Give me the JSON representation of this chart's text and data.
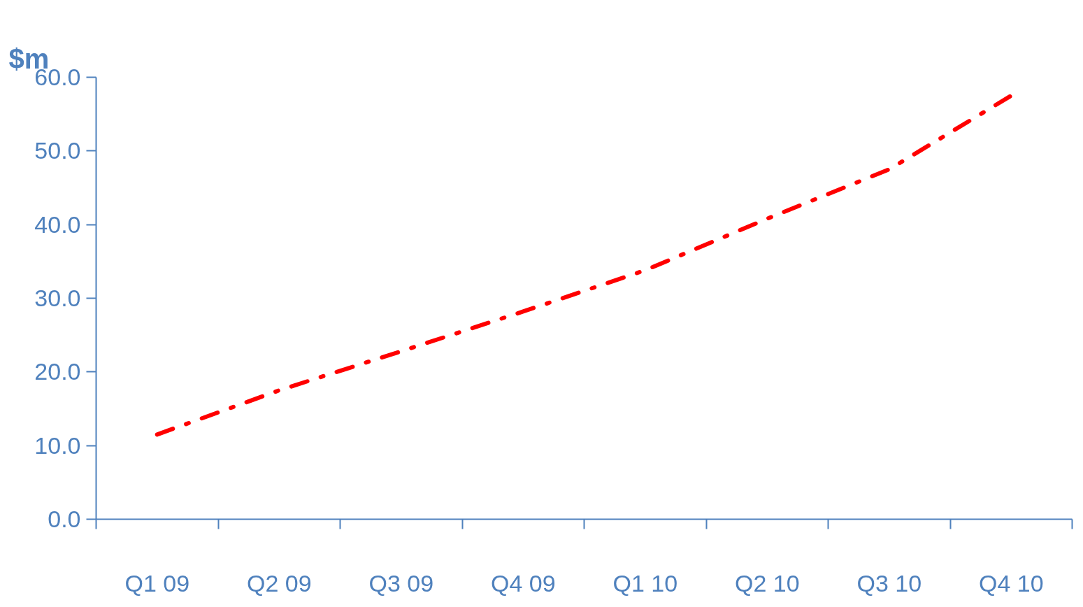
{
  "chart_data": {
    "type": "line",
    "ylabel": "$m",
    "categories": [
      "Q1 09",
      "Q2 09",
      "Q3 09",
      "Q4 09",
      "Q1 10",
      "Q2 10",
      "Q3 10",
      "Q4 10"
    ],
    "series": [
      {
        "color": "#ff0000",
        "values": [
          11.5,
          17.5,
          22.8,
          28.2,
          33.8,
          40.8,
          47.5,
          57.5
        ]
      }
    ],
    "ylim": [
      0,
      60
    ],
    "yticks": [
      {
        "value": 0,
        "label": "0.0"
      },
      {
        "value": 10,
        "label": "10.0"
      },
      {
        "value": 20,
        "label": "20.0"
      },
      {
        "value": 30,
        "label": "30.0"
      },
      {
        "value": 40,
        "label": "40.0"
      },
      {
        "value": 50,
        "label": "50.0"
      },
      {
        "value": 60,
        "label": "60.0"
      }
    ],
    "grid": false,
    "marker": "none",
    "line_style": "dashdot"
  }
}
